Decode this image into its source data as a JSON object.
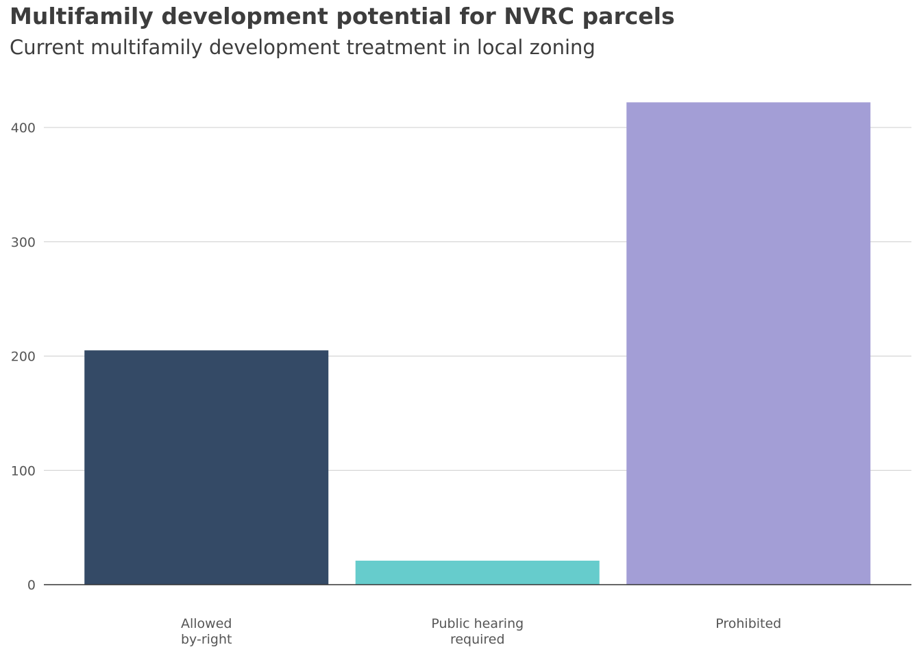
{
  "chart_data": {
    "type": "bar",
    "title": "Multifamily development potential  for NVRC parcels",
    "subtitle": "Current multifamily development treatment in local zoning",
    "categories": [
      [
        "Allowed",
        "by-right"
      ],
      [
        "Public hearing",
        "required"
      ],
      [
        "Prohibited"
      ]
    ],
    "values": [
      205,
      21,
      422
    ],
    "colors": [
      "#344a66",
      "#66cccc",
      "#a39ed6"
    ],
    "xlabel": "",
    "ylabel": "",
    "ylim": [
      0,
      400
    ],
    "yticks": [
      0,
      100,
      200,
      300,
      400
    ],
    "grid": true,
    "legend": "none"
  }
}
